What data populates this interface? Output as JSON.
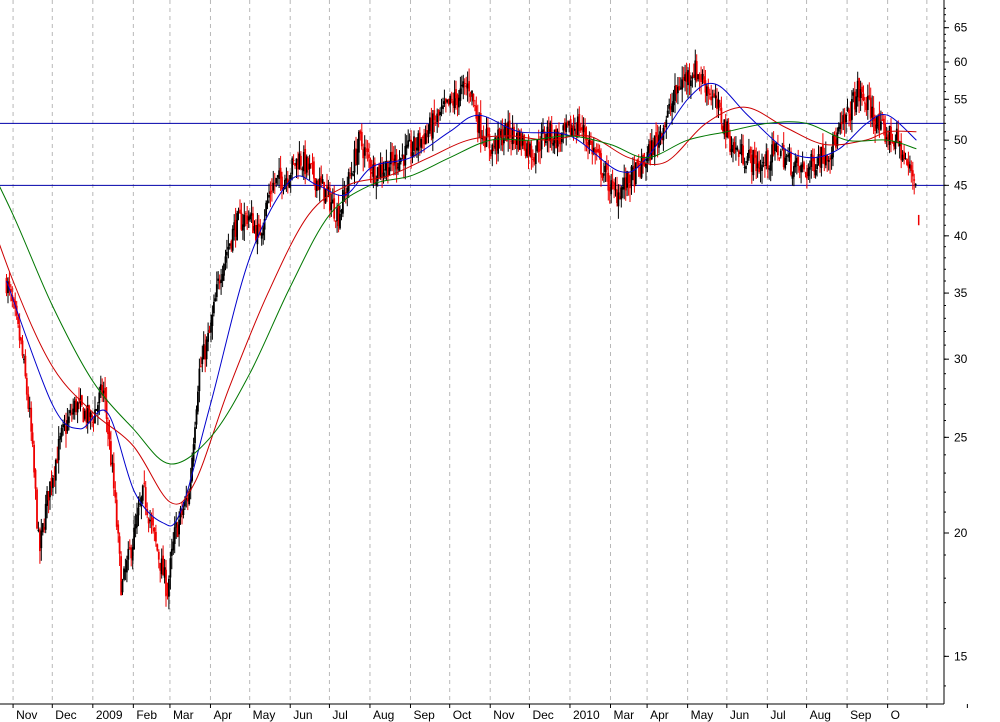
{
  "chart_data": {
    "type": "line",
    "subtype": "candlestick price chart with moving averages and horizontal support/resistance lines",
    "y_scale": "log",
    "ylim": [
      13.5,
      70
    ],
    "y_ticks": [
      15,
      20,
      25,
      30,
      35,
      40,
      45,
      50,
      55,
      60,
      65
    ],
    "y_tick_labels": [
      "15",
      "20",
      "25",
      "30",
      "35",
      "40",
      "45",
      "50",
      "55",
      "60",
      "65"
    ],
    "x_labels": [
      "Nov",
      "Dec",
      "2009",
      "Feb",
      "Mar",
      "Apr",
      "May",
      "Jun",
      "Jul",
      "Aug",
      "Sep",
      "Oct",
      "Nov",
      "Dec",
      "2010",
      "Mar",
      "Apr",
      "May",
      "Jun",
      "Jul",
      "Aug",
      "Sep",
      "O"
    ],
    "grid": "vertical dashed lines at month boundaries",
    "horizontal_lines": [
      {
        "value": 52,
        "color": "#0000aa"
      },
      {
        "value": 45,
        "color": "#0000aa"
      }
    ],
    "close_series": {
      "x": [
        "2008-10-27",
        "2008-11-07",
        "2008-11-14",
        "2008-11-21",
        "2008-11-28",
        "2008-12-08",
        "2008-12-19",
        "2008-12-31",
        "2009-01-09",
        "2009-01-16",
        "2009-01-23",
        "2009-02-02",
        "2009-02-09",
        "2009-02-18",
        "2009-02-27",
        "2009-03-05",
        "2009-03-16",
        "2009-03-23",
        "2009-04-01",
        "2009-04-09",
        "2009-04-20",
        "2009-04-30",
        "2009-05-08",
        "2009-05-18",
        "2009-05-29",
        "2009-06-08",
        "2009-06-19",
        "2009-06-29",
        "2009-07-08",
        "2009-07-17",
        "2009-07-24",
        "2009-08-04",
        "2009-08-12",
        "2009-08-24",
        "2009-09-03",
        "2009-09-14",
        "2009-09-24",
        "2009-10-05",
        "2009-10-16",
        "2009-10-23",
        "2009-11-02",
        "2009-11-13",
        "2009-11-25",
        "2009-12-04",
        "2009-12-14",
        "2009-12-24",
        "2010-01-07",
        "2010-01-15",
        "2010-01-25",
        "2010-02-04",
        "2010-02-12",
        "2010-02-25",
        "2010-03-08",
        "2010-03-17",
        "2010-03-26",
        "2010-04-06",
        "2010-04-15",
        "2010-04-26",
        "2010-05-06",
        "2010-05-17",
        "2010-05-28",
        "2010-06-09",
        "2010-06-21",
        "2010-07-01",
        "2010-07-09",
        "2010-07-20",
        "2010-08-02",
        "2010-08-09",
        "2010-08-18",
        "2010-08-27",
        "2010-09-08",
        "2010-09-16",
        "2010-09-23"
      ],
      "y": [
        36,
        31,
        26,
        19,
        22,
        25,
        27,
        26,
        28,
        23,
        17.5,
        20,
        22,
        19.5,
        17.5,
        20,
        22,
        29,
        32,
        37,
        41,
        42,
        40,
        45,
        46,
        48,
        46,
        44,
        42,
        46,
        50,
        46.5,
        47,
        48,
        49,
        51,
        53,
        55,
        57,
        52,
        49,
        51,
        50,
        48.5,
        51,
        50,
        52,
        50,
        47,
        44,
        45,
        47,
        50,
        53,
        57,
        59,
        57,
        53,
        49,
        48,
        47,
        49,
        47,
        46.5,
        48,
        49,
        53,
        56,
        54,
        51,
        50,
        47,
        45.5
      ]
    },
    "series": [
      {
        "color": "#0000cc",
        "values_at_x": [
          "2008-10-27",
          "2008-12-01",
          "2008-12-22",
          "2009-01-12",
          "2009-02-02",
          "2009-02-23",
          "2009-03-09",
          "2009-04-01",
          "2009-05-01",
          "2009-06-01",
          "2009-06-22",
          "2009-07-13",
          "2009-08-03",
          "2009-09-01",
          "2009-10-01",
          "2009-10-23",
          "2009-11-23",
          "2010-01-01",
          "2010-02-08",
          "2010-03-01",
          "2010-04-01",
          "2010-04-22",
          "2010-05-17",
          "2010-06-14",
          "2010-07-05",
          "2010-07-26",
          "2010-08-16",
          "2010-09-01",
          "2010-09-23"
        ],
        "y": [
          36,
          27,
          25.5,
          26.5,
          22,
          20.5,
          21,
          27,
          38,
          45.5,
          45,
          44,
          47,
          48,
          51,
          53,
          51,
          50.5,
          46.5,
          48,
          55,
          57,
          53,
          49,
          48,
          49,
          52,
          53,
          50
        ]
      },
      {
        "color": "#cc0000",
        "values_at_x": [
          "2008-10-01",
          "2008-11-01",
          "2008-12-01",
          "2009-01-01",
          "2009-02-01",
          "2009-03-01",
          "2009-03-20",
          "2009-04-15",
          "2009-05-15",
          "2009-06-15",
          "2009-07-15",
          "2009-08-15",
          "2009-09-15",
          "2009-10-15",
          "2009-11-15",
          "2009-12-15",
          "2010-01-15",
          "2010-02-15",
          "2010-03-15",
          "2010-04-15",
          "2010-05-15",
          "2010-06-15",
          "2010-07-15",
          "2010-08-15",
          "2010-09-01",
          "2010-09-23"
        ],
        "y": [
          47,
          36,
          29.5,
          26.5,
          24.5,
          21.5,
          22.5,
          28,
          35,
          42,
          45,
          46,
          48,
          50,
          50.5,
          50,
          50.5,
          48,
          47.5,
          52,
          54,
          51.5,
          49.5,
          50,
          51,
          51
        ]
      },
      {
        "color": "#007700",
        "values_at_x": [
          "2008-10-01",
          "2008-11-01",
          "2008-12-01",
          "2009-01-01",
          "2009-02-01",
          "2009-03-01",
          "2009-04-01",
          "2009-05-01",
          "2009-06-01",
          "2009-07-01",
          "2009-08-01",
          "2009-09-01",
          "2009-10-01",
          "2009-11-01",
          "2009-12-01",
          "2010-01-01",
          "2010-02-01",
          "2010-03-01",
          "2010-04-01",
          "2010-05-01",
          "2010-06-01",
          "2010-07-01",
          "2010-08-01",
          "2010-09-01",
          "2010-09-23"
        ],
        "y": [
          51,
          42,
          34,
          28.5,
          25.5,
          23.5,
          25,
          29,
          35.5,
          42,
          45,
          46,
          48,
          50,
          50,
          50.5,
          49.5,
          48,
          50,
          51,
          52,
          52,
          50,
          50,
          49
        ]
      }
    ]
  }
}
